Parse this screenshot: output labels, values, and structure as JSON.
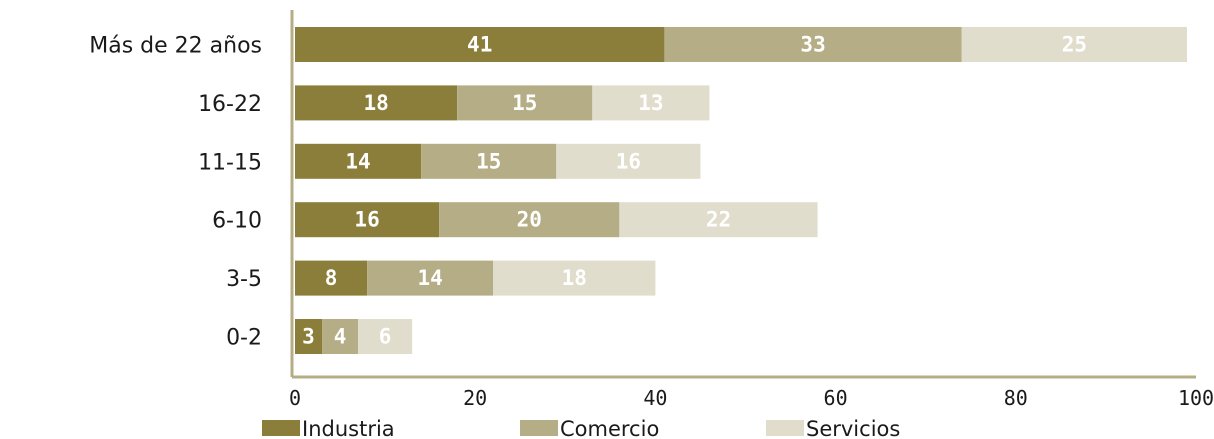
{
  "chart_data": {
    "type": "bar",
    "orientation": "horizontal",
    "stacked": true,
    "categories": [
      "Más de 22 años",
      "16-22",
      "11-15",
      "6-10",
      "3-5",
      "0-2"
    ],
    "series": [
      {
        "name": "Industria",
        "color": "#8b7d3a",
        "values": [
          41,
          18,
          14,
          16,
          8,
          3
        ]
      },
      {
        "name": "Comercio",
        "color": "#b5ad85",
        "values": [
          33,
          15,
          15,
          20,
          14,
          4
        ]
      },
      {
        "name": "Servicios",
        "color": "#e1ddcd",
        "values": [
          25,
          13,
          16,
          22,
          18,
          6
        ]
      }
    ],
    "xticks": [
      "0",
      "20",
      "40",
      "60",
      "80",
      "100"
    ],
    "xlim": [
      0,
      100
    ],
    "grid": false,
    "legend_position": "bottom",
    "title": "",
    "xlabel": "",
    "ylabel": ""
  }
}
